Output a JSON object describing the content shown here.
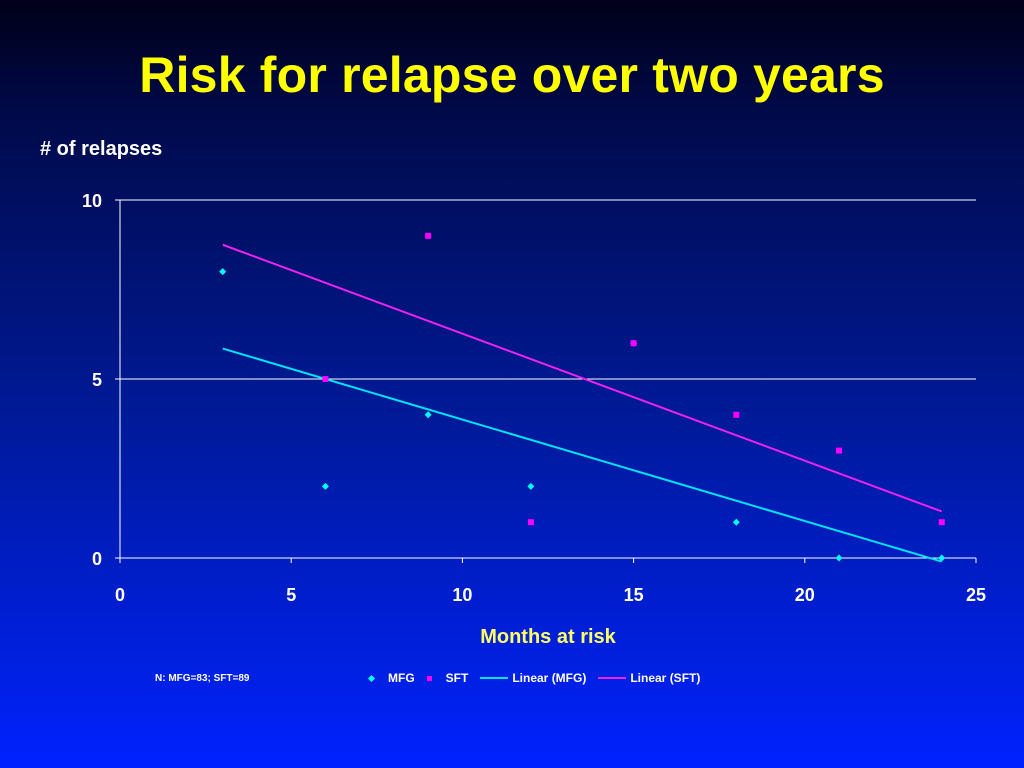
{
  "slide": {
    "title": "Risk for relapse over two years",
    "footnote": "N: MFG=83; SFT=89"
  },
  "colors": {
    "title": "#ffff00",
    "axis_text": "#ffffff",
    "axis_title": "#ffff66",
    "mfg": "#00ffff",
    "sft": "#ff00ff",
    "linear_mfg": "#00e5ff",
    "linear_sft": "#ee22ee"
  },
  "legend": {
    "items": [
      {
        "label": "MFG",
        "kind": "marker",
        "shape": "diamond",
        "color": "#00ffff"
      },
      {
        "label": "SFT",
        "kind": "marker",
        "shape": "square",
        "color": "#ff00ff"
      },
      {
        "label": "Linear (MFG)",
        "kind": "line",
        "color": "#00e5ff"
      },
      {
        "label": "Linear (SFT)",
        "kind": "line",
        "color": "#ee22ee"
      }
    ]
  },
  "chart_data": {
    "type": "scatter",
    "title": "",
    "xlabel": "Months at risk",
    "ylabel": "# of relapses",
    "xlim": [
      0,
      25
    ],
    "ylim": [
      0,
      10
    ],
    "xticks": [
      0,
      5,
      10,
      15,
      20,
      25
    ],
    "yticks": [
      0,
      5,
      10
    ],
    "grid": {
      "horizontal": true,
      "vertical": false
    },
    "legend_position": "bottom",
    "series": [
      {
        "name": "MFG",
        "marker": "diamond",
        "color": "#00ffff",
        "points": [
          [
            3,
            8
          ],
          [
            6,
            2
          ],
          [
            9,
            4
          ],
          [
            12,
            2
          ],
          [
            15,
            6
          ],
          [
            18,
            1
          ],
          [
            21,
            0
          ],
          [
            24,
            0
          ]
        ]
      },
      {
        "name": "SFT",
        "marker": "square",
        "color": "#ff00ff",
        "points": [
          [
            6,
            5
          ],
          [
            9,
            9
          ],
          [
            12,
            1
          ],
          [
            15,
            6
          ],
          [
            18,
            4
          ],
          [
            21,
            3
          ],
          [
            24,
            1
          ]
        ]
      }
    ],
    "trendlines": [
      {
        "name": "Linear (MFG)",
        "color": "#00e5ff",
        "from": [
          3,
          5.85
        ],
        "to": [
          24,
          -0.1
        ]
      },
      {
        "name": "Linear (SFT)",
        "color": "#ee22ee",
        "from": [
          3,
          8.75
        ],
        "to": [
          24,
          1.3
        ]
      }
    ]
  }
}
